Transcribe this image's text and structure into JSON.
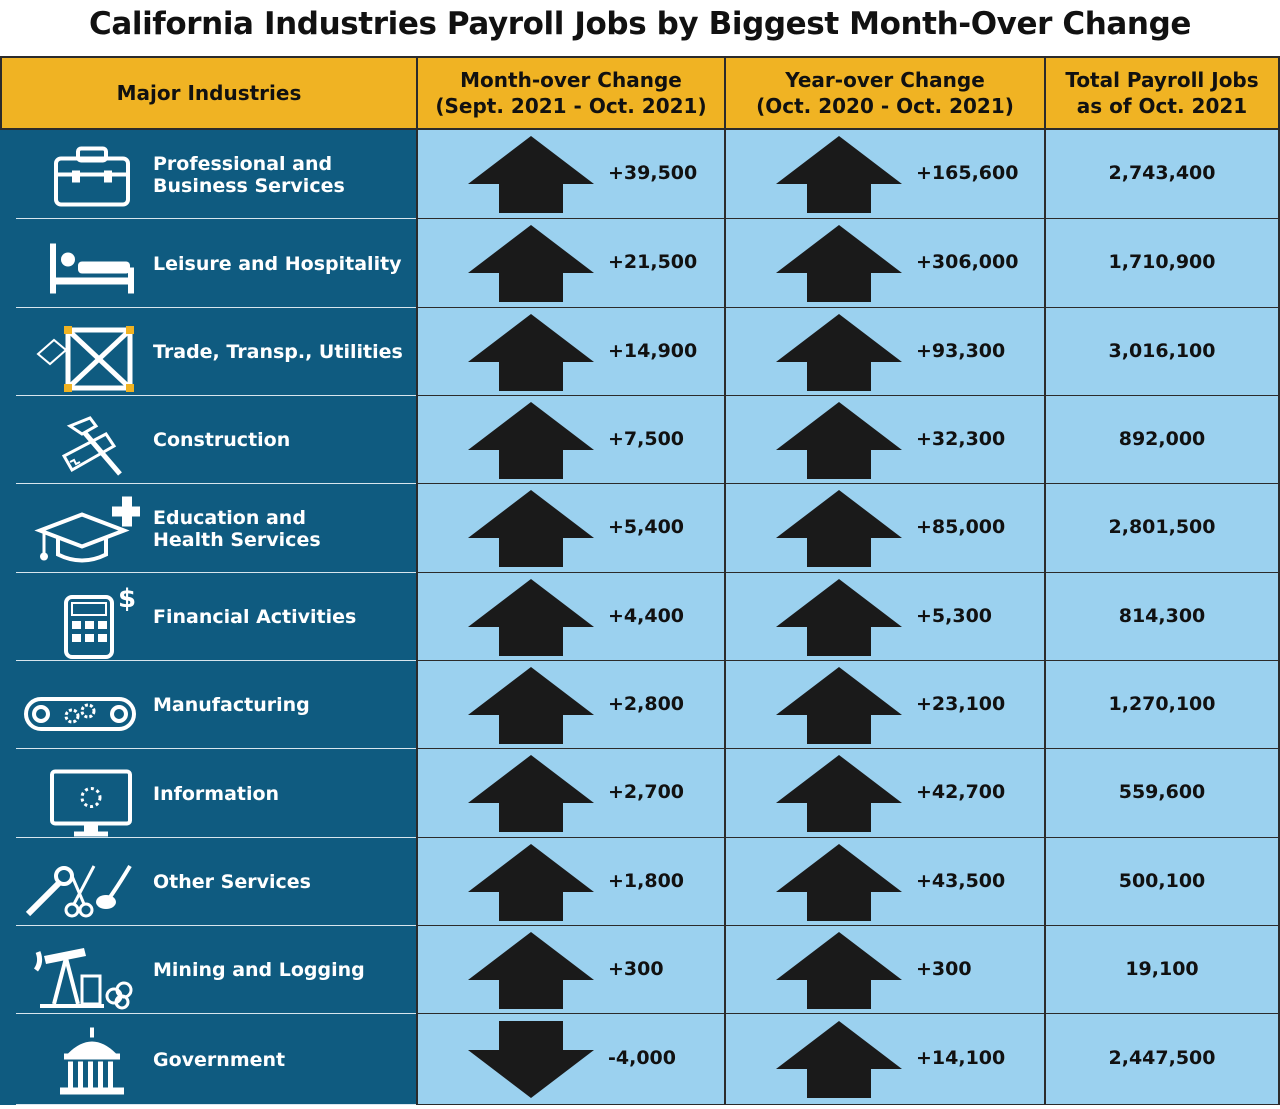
{
  "title": "California Industries Payroll Jobs by Biggest Month-Over Change",
  "headers": {
    "industry": "Major Industries",
    "month": "Month-over Change\n(Sept. 2021 - Oct. 2021)",
    "year": "Year-over Change\n(Oct. 2020 - Oct. 2021)",
    "total": "Total Payroll Jobs\nas of Oct. 2021"
  },
  "colors": {
    "header": "#f0b323",
    "industry_bg": "#0f5b80",
    "cell_bg": "#9bd1ef",
    "arrow": "#1a1a1a"
  },
  "rows": [
    {
      "industry": "Professional and\nBusiness Services",
      "icon": "toolbox-icon",
      "month": "+39,500",
      "month_dir": "up",
      "year": "+165,600",
      "year_dir": "up",
      "total": "2,743,400"
    },
    {
      "industry": "Leisure and Hospitality",
      "icon": "bed-icon",
      "month": "+21,500",
      "month_dir": "up",
      "year": "+306,000",
      "year_dir": "up",
      "total": "1,710,900"
    },
    {
      "industry": "Trade, Transp., Utilities",
      "icon": "crate-icon",
      "month": "+14,900",
      "month_dir": "up",
      "year": "+93,300",
      "year_dir": "up",
      "total": "3,016,100"
    },
    {
      "industry": "Construction",
      "icon": "tools-icon",
      "month": "+7,500",
      "month_dir": "up",
      "year": "+32,300",
      "year_dir": "up",
      "total": "892,000"
    },
    {
      "industry": "Education and\nHealth Services",
      "icon": "graduation-cap-icon",
      "month": "+5,400",
      "month_dir": "up",
      "year": "+85,000",
      "year_dir": "up",
      "total": "2,801,500"
    },
    {
      "industry": "Financial Activities",
      "icon": "calculator-icon",
      "month": "+4,400",
      "month_dir": "up",
      "year": "+5,300",
      "year_dir": "up",
      "total": "814,300"
    },
    {
      "industry": "Manufacturing",
      "icon": "conveyor-icon",
      "month": "+2,800",
      "month_dir": "up",
      "year": "+23,100",
      "year_dir": "up",
      "total": "1,270,100"
    },
    {
      "industry": "Information",
      "icon": "monitor-icon",
      "month": "+2,700",
      "month_dir": "up",
      "year": "+42,700",
      "year_dir": "up",
      "total": "559,600"
    },
    {
      "industry": "Other Services",
      "icon": "wrench-scissors-icon",
      "month": "+1,800",
      "month_dir": "up",
      "year": "+43,500",
      "year_dir": "up",
      "total": "500,100"
    },
    {
      "industry": "Mining and Logging",
      "icon": "oil-pump-icon",
      "month": "+300",
      "month_dir": "up",
      "year": "+300",
      "year_dir": "up",
      "total": "19,100"
    },
    {
      "industry": "Government",
      "icon": "capitol-icon",
      "month": "-4,000",
      "month_dir": "down",
      "year": "+14,100",
      "year_dir": "up",
      "total": "2,447,500"
    }
  ],
  "chart_data": {
    "type": "table",
    "title": "California Industries Payroll Jobs by Biggest Month-Over Change",
    "columns": [
      "Major Industries",
      "Month-over Change (Sept. 2021 - Oct. 2021)",
      "Year-over Change (Oct. 2020 - Oct. 2021)",
      "Total Payroll Jobs as of Oct. 2021"
    ],
    "categories": [
      "Professional and Business Services",
      "Leisure and Hospitality",
      "Trade, Transp., Utilities",
      "Construction",
      "Education and Health Services",
      "Financial Activities",
      "Manufacturing",
      "Information",
      "Other Services",
      "Mining and Logging",
      "Government"
    ],
    "series": [
      {
        "name": "Month-over Change (Sept. 2021 - Oct. 2021)",
        "values": [
          39500,
          21500,
          14900,
          7500,
          5400,
          4400,
          2800,
          2700,
          1800,
          300,
          -4000
        ]
      },
      {
        "name": "Year-over Change (Oct. 2020 - Oct. 2021)",
        "values": [
          165600,
          306000,
          93300,
          32300,
          85000,
          5300,
          23100,
          42700,
          43500,
          300,
          14100
        ]
      },
      {
        "name": "Total Payroll Jobs as of Oct. 2021",
        "values": [
          2743400,
          1710900,
          3016100,
          892000,
          2801500,
          814300,
          1270100,
          559600,
          500100,
          19100,
          2447500
        ]
      }
    ]
  }
}
